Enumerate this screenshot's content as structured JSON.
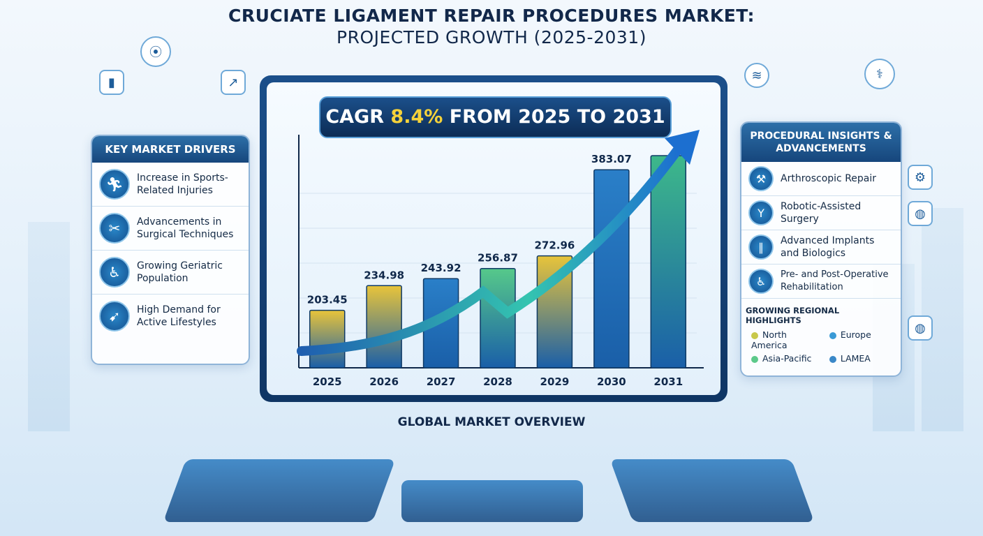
{
  "title": {
    "line1": "CRUCIATE LIGAMENT REPAIR PROCEDURES MARKET:",
    "line2": "PROJECTED GROWTH (2025-2031)"
  },
  "cagr": {
    "prefix": "CAGR ",
    "value": "8.4%",
    "suffix": " FROM 2025 TO 2031",
    "highlight_color": "#f5d23a"
  },
  "left_panel": {
    "title": "KEY MARKET DRIVERS",
    "items": [
      {
        "icon": "runner-icon",
        "label": "Increase in Sports-Related Injuries"
      },
      {
        "icon": "surgical-tools-icon",
        "label": "Advancements in Surgical Techniques"
      },
      {
        "icon": "elderly-person-icon",
        "label": "Growing Geriatric Population"
      },
      {
        "icon": "running-person-icon",
        "label": "High Demand for Active Lifestyles"
      }
    ]
  },
  "right_panel": {
    "title": "PROCEDURAL INSIGHTS & ADVANCEMENTS",
    "items": [
      {
        "icon": "arthroscope-icon",
        "label": "Arthroscopic Repair"
      },
      {
        "icon": "robot-arm-icon",
        "label": "Robotic-Assisted Surgery"
      },
      {
        "icon": "implant-icon",
        "label": "Advanced Implants and Biologics"
      },
      {
        "icon": "rehabilitation-icon",
        "label": "Pre- and Post-Operative Rehabilitation"
      }
    ],
    "regions_title": "GROWING REGIONAL HIGHLIGHTS",
    "regions": [
      {
        "label": "North America",
        "color": "#c8c84a"
      },
      {
        "label": "Europe",
        "color": "#3a9ad6"
      },
      {
        "label": "Asia-Pacific",
        "color": "#5cc98a"
      },
      {
        "label": "LAMEA",
        "color": "#3a88c8"
      }
    ]
  },
  "overview_label": "GLOBAL MARKET OVERVIEW",
  "chart_data": {
    "type": "bar",
    "categories": [
      "2025",
      "2026",
      "2027",
      "2028",
      "2029",
      "2030",
      "2031"
    ],
    "values": [
      203.45,
      234.98,
      243.92,
      256.87,
      272.96,
      383.07,
      null
    ],
    "data_labels": [
      "203.45",
      "234.98",
      "243.92",
      "256.87",
      "272.96",
      "383.07",
      ""
    ],
    "title": "",
    "xlabel": "",
    "ylabel": "",
    "grid": true,
    "trend_arrow": true,
    "bar_colors": [
      "#e8c43a",
      "#e8c43a",
      "#2a7fc8",
      "#56c98a",
      "#e8c43a",
      "#2a7fc8",
      "#3db88a"
    ]
  }
}
